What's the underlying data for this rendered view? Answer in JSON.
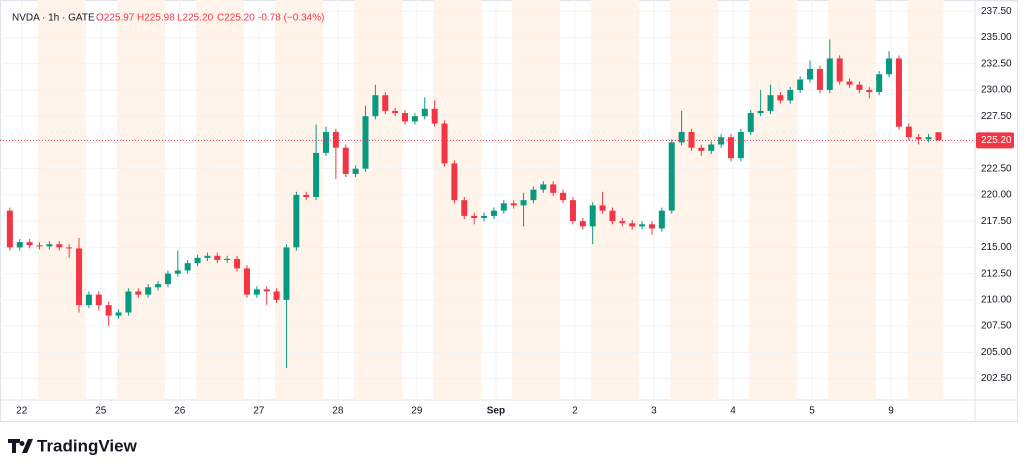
{
  "chart_data": {
    "type": "candlestick",
    "header": {
      "symbol": "NVDA · 1h · GATE",
      "open": "O225.97",
      "high": "H225.98",
      "low": "L225.20",
      "close": "C225.20",
      "change": "-0.78 (−0.34%)"
    },
    "up_color": "#089981",
    "down_color": "#f23645",
    "grid": true,
    "open": [
      218.5,
      215.0,
      215.5,
      215.2,
      215.1,
      215.3,
      215.0,
      214.9,
      209.5,
      210.5,
      209.5,
      208.5,
      208.8,
      210.8,
      210.5,
      211.2,
      211.5,
      212.5,
      212.8,
      213.5,
      214.0,
      214.2,
      213.8,
      213.9,
      213.0,
      210.5,
      211.0,
      210.8,
      210.0,
      215.0,
      220.0,
      219.8,
      224.0,
      226.0,
      224.5,
      222.0,
      222.5,
      227.5,
      229.5,
      228.0,
      227.8,
      227.0,
      227.5,
      228.2,
      226.8,
      223.0,
      219.5,
      218.0,
      217.8,
      218.0,
      218.5,
      219.2,
      219.0,
      219.5,
      220.5,
      221.0,
      220.2,
      219.5,
      217.5,
      217.0,
      219.0,
      218.5,
      217.5,
      217.3,
      217.0,
      217.2,
      216.8,
      218.5,
      225.0,
      226.0,
      224.5,
      224.2,
      224.8,
      225.5,
      223.5,
      226.0,
      227.8,
      228.0,
      229.5,
      229.0,
      230.0,
      231.0,
      232.0,
      230.0,
      233.0,
      230.8,
      230.5,
      230.0,
      229.8,
      231.5,
      233.0,
      226.5,
      225.5,
      225.3,
      225.97
    ],
    "high": [
      218.8,
      215.8,
      215.8,
      215.5,
      215.6,
      215.6,
      215.3,
      215.9,
      210.8,
      210.8,
      209.8,
      209.1,
      211.1,
      211.1,
      211.5,
      211.8,
      212.8,
      214.7,
      213.8,
      214.3,
      214.5,
      214.5,
      214.2,
      214.2,
      213.3,
      211.3,
      211.3,
      211.1,
      215.3,
      220.3,
      220.3,
      226.7,
      226.5,
      226.3,
      224.8,
      222.8,
      228.5,
      230.5,
      229.8,
      228.3,
      228.1,
      227.8,
      229.3,
      229.0,
      227.1,
      223.3,
      219.8,
      218.3,
      218.3,
      218.8,
      219.5,
      219.5,
      220.2,
      220.8,
      221.3,
      221.3,
      220.5,
      219.8,
      217.8,
      219.3,
      220.3,
      218.8,
      217.8,
      217.6,
      217.5,
      217.5,
      218.8,
      225.3,
      228.0,
      226.3,
      224.8,
      225.1,
      225.8,
      225.8,
      226.3,
      228.1,
      230.0,
      230.5,
      229.8,
      230.3,
      231.3,
      232.8,
      232.3,
      234.8,
      233.3,
      231.1,
      230.8,
      230.3,
      231.8,
      233.7,
      233.3,
      226.8,
      225.8,
      225.8,
      225.98
    ],
    "low": [
      214.7,
      214.7,
      214.9,
      214.8,
      214.8,
      214.7,
      214.0,
      208.8,
      209.2,
      209.0,
      207.5,
      208.2,
      208.5,
      210.2,
      210.2,
      210.9,
      211.2,
      212.2,
      212.5,
      213.2,
      213.7,
      213.5,
      213.5,
      212.7,
      210.2,
      210.2,
      209.5,
      209.7,
      203.5,
      214.7,
      219.5,
      219.5,
      223.7,
      221.5,
      221.7,
      221.7,
      222.2,
      227.2,
      227.7,
      227.5,
      226.7,
      226.7,
      227.2,
      226.5,
      222.7,
      219.2,
      217.7,
      217.2,
      217.5,
      217.7,
      218.2,
      218.7,
      217.0,
      219.2,
      220.2,
      219.9,
      219.2,
      217.2,
      216.7,
      215.3,
      218.2,
      217.2,
      217.0,
      216.7,
      216.7,
      216.2,
      216.5,
      218.2,
      224.7,
      224.2,
      223.7,
      223.9,
      224.5,
      223.2,
      223.2,
      225.7,
      227.5,
      227.7,
      228.7,
      228.7,
      229.7,
      230.7,
      229.7,
      229.7,
      230.5,
      230.2,
      229.7,
      229.2,
      229.5,
      231.2,
      226.2,
      225.2,
      224.8,
      225.0,
      225.2
    ],
    "close": [
      215.0,
      215.5,
      215.2,
      215.1,
      215.3,
      215.0,
      214.9,
      209.5,
      210.5,
      209.5,
      208.5,
      208.8,
      210.8,
      210.5,
      211.2,
      211.5,
      212.5,
      212.8,
      213.5,
      214.0,
      214.2,
      213.8,
      213.9,
      213.0,
      210.5,
      211.0,
      210.8,
      210.0,
      215.0,
      220.0,
      219.8,
      224.0,
      226.0,
      224.5,
      222.0,
      222.5,
      227.5,
      229.5,
      228.0,
      227.8,
      227.0,
      227.5,
      228.2,
      226.8,
      223.0,
      219.5,
      218.0,
      217.8,
      218.0,
      218.5,
      219.2,
      219.0,
      219.5,
      220.5,
      221.0,
      220.2,
      219.5,
      217.5,
      217.0,
      219.0,
      218.5,
      217.5,
      217.3,
      217.0,
      217.2,
      216.8,
      218.5,
      225.0,
      226.0,
      224.5,
      224.2,
      224.8,
      225.5,
      223.5,
      226.0,
      227.8,
      228.0,
      229.5,
      229.0,
      230.0,
      231.0,
      232.0,
      230.0,
      233.0,
      230.8,
      230.5,
      230.0,
      229.8,
      231.5,
      233.0,
      226.5,
      225.5,
      225.3,
      225.5,
      225.2
    ],
    "xlim": [
      -1,
      97.7
    ],
    "xticks": [
      {
        "value": 1.2,
        "label": "22"
      },
      {
        "value": 9.2,
        "label": "25"
      },
      {
        "value": 17.2,
        "label": "26"
      },
      {
        "value": 25.2,
        "label": "27"
      },
      {
        "value": 33.2,
        "label": "28"
      },
      {
        "value": 41.2,
        "label": "29"
      },
      {
        "value": 49.2,
        "label": "Sep"
      },
      {
        "value": 57.2,
        "label": "2"
      },
      {
        "value": 65.2,
        "label": "3"
      },
      {
        "value": 73.2,
        "label": "4"
      },
      {
        "value": 81.2,
        "label": "5"
      },
      {
        "value": 89.2,
        "label": "9"
      }
    ],
    "ylim": [
      200.46,
      238.57
    ],
    "yticks": [
      {
        "value": 202.5,
        "label": "202.50"
      },
      {
        "value": 205,
        "label": "205.00"
      },
      {
        "value": 207.5,
        "label": "207.50"
      },
      {
        "value": 210,
        "label": "210.00"
      },
      {
        "value": 212.5,
        "label": "212.50"
      },
      {
        "value": 215,
        "label": "215.00"
      },
      {
        "value": 217.5,
        "label": "217.50"
      },
      {
        "value": 220,
        "label": "220.00"
      },
      {
        "value": 222.5,
        "label": "222.50"
      },
      {
        "value": 225,
        "label": "225.00"
      },
      {
        "value": 227.5,
        "label": "227.50"
      },
      {
        "value": 230,
        "label": "230.00"
      },
      {
        "value": 232.5,
        "label": "232.50"
      },
      {
        "value": 235,
        "label": "235.00"
      },
      {
        "value": 237.5,
        "label": "237.50"
      }
    ],
    "last_price": {
      "value": 225.2,
      "label": "225.20"
    },
    "branding": "TradingView"
  }
}
